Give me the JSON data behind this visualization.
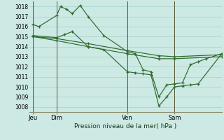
{
  "title": "Pression niveau de la mer( hPa )",
  "ylim": [
    1007.5,
    1018.5
  ],
  "yticks": [
    1008,
    1009,
    1010,
    1011,
    1012,
    1013,
    1014,
    1015,
    1016,
    1017,
    1018
  ],
  "bg_color": "#cce9e4",
  "grid_color": "#aad5cc",
  "line_color": "#2d6a2d",
  "xtick_labels": [
    "Jeu",
    "Dim",
    "Ven",
    "Sam"
  ],
  "xtick_positions": [
    0,
    24,
    96,
    144
  ],
  "xlim": [
    -4,
    192
  ],
  "vline_color": "#555533",
  "series": [
    {
      "x": [
        0,
        6,
        24,
        28,
        34,
        40,
        48,
        56,
        72,
        96,
        104,
        112,
        120,
        128,
        136,
        144,
        152,
        160,
        168,
        176,
        192
      ],
      "y": [
        1016.2,
        1016.0,
        1017.1,
        1018.0,
        1017.7,
        1017.3,
        1018.1,
        1017.0,
        1015.1,
        1013.5,
        1013.3,
        1011.7,
        1011.5,
        1009.0,
        1010.2,
        1010.3,
        1010.4,
        1012.2,
        1012.5,
        1012.8,
        1013.3
      ]
    },
    {
      "x": [
        0,
        24,
        32,
        40,
        56,
        72,
        96,
        104,
        112,
        120,
        128,
        136,
        144,
        152,
        160,
        168,
        192
      ],
      "y": [
        1015.1,
        1014.9,
        1015.2,
        1015.5,
        1014.0,
        1013.7,
        1011.5,
        1011.4,
        1011.3,
        1011.2,
        1008.1,
        1009.0,
        1010.0,
        1010.1,
        1010.2,
        1010.3,
        1013.3
      ]
    },
    {
      "x": [
        0,
        24,
        56,
        96,
        128,
        144,
        192
      ],
      "y": [
        1015.0,
        1014.8,
        1014.3,
        1013.6,
        1013.1,
        1013.0,
        1013.2
      ]
    },
    {
      "x": [
        0,
        24,
        56,
        96,
        128,
        144,
        192
      ],
      "y": [
        1015.0,
        1014.6,
        1014.0,
        1013.3,
        1012.8,
        1012.8,
        1013.0
      ]
    }
  ]
}
